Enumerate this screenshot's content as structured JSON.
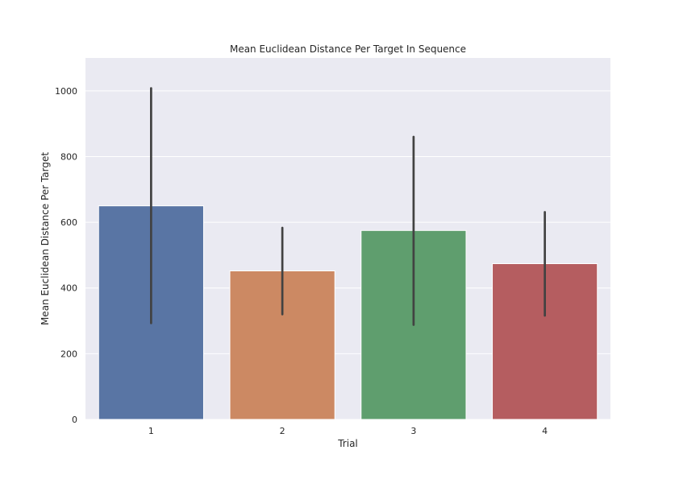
{
  "chart_data": {
    "type": "bar",
    "title": "Mean Euclidean Distance Per Target In Sequence",
    "xlabel": "Trial",
    "ylabel": "Mean Euclidean Distance Per Target",
    "categories": [
      "1",
      "2",
      "3",
      "4"
    ],
    "values": [
      650,
      452,
      575,
      474
    ],
    "error_low": [
      293,
      320,
      288,
      316
    ],
    "error_high": [
      1008,
      583,
      860,
      631
    ],
    "colors": [
      "#5975a4",
      "#cc8963",
      "#5f9e6e",
      "#b55d60"
    ],
    "yticks": [
      0,
      200,
      400,
      600,
      800,
      1000
    ],
    "ytick_labels": [
      "0",
      "200",
      "400",
      "600",
      "800",
      "1000"
    ],
    "ylim": [
      0,
      1100
    ],
    "grid": true,
    "background": "#eaeaf2"
  }
}
